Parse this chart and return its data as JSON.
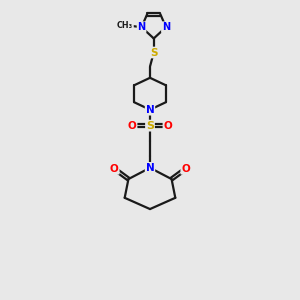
{
  "bg_color": "#e8e8e8",
  "bond_color": "#1a1a1a",
  "N_color": "#0000ff",
  "S_color": "#ccaa00",
  "O_color": "#ff0000",
  "line_width": 1.6,
  "fig_size": [
    3.0,
    3.0
  ],
  "dpi": 100,
  "xlim": [
    0,
    10
  ],
  "ylim": [
    0,
    16
  ]
}
